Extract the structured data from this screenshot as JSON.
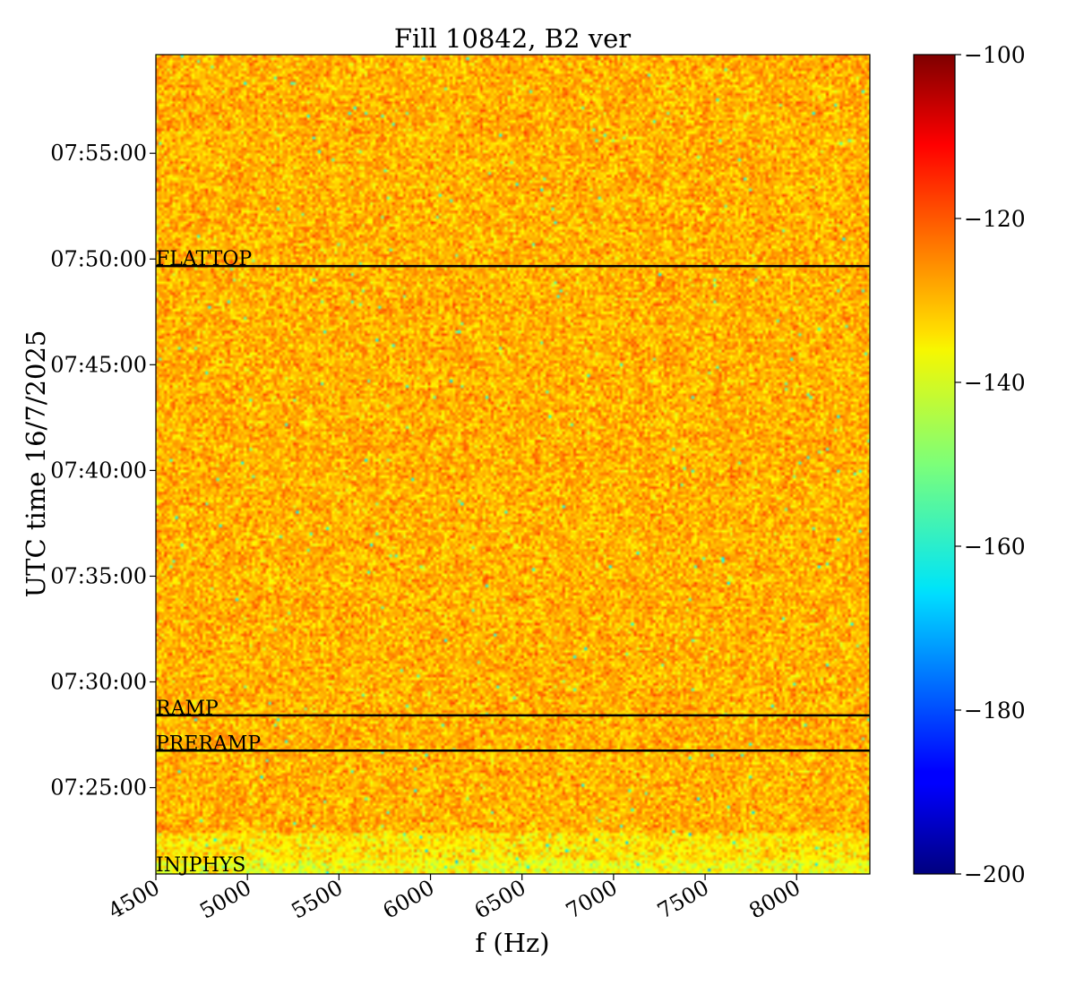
{
  "chart_data": {
    "type": "heatmap",
    "title": "Fill 10842, B2 ver",
    "xlabel": "f (Hz)",
    "ylabel": "UTC time 16/7/2025",
    "xlim": [
      4500,
      8400
    ],
    "ylim": [
      "07:20:55",
      "07:59:40"
    ],
    "x_ticks": [
      "4500",
      "5000",
      "5500",
      "6000",
      "6500",
      "7000",
      "7500",
      "8000"
    ],
    "x_tick_values": [
      4500,
      5000,
      5500,
      6000,
      6500,
      7000,
      7500,
      8000
    ],
    "y_ticks": [
      "07:25:00",
      "07:30:00",
      "07:35:00",
      "07:40:00",
      "07:45:00",
      "07:50:00",
      "07:55:00"
    ],
    "colormap": "jet",
    "colorbar": {
      "min": -200,
      "max": -100,
      "ticks": [
        "−200",
        "−180",
        "−160",
        "−140",
        "−120",
        "−100"
      ],
      "tick_values": [
        -200,
        -180,
        -160,
        -140,
        -120,
        -100
      ]
    },
    "typical_value_range": [
      -140,
      -120
    ],
    "markers": [
      {
        "label": "FLATTOP",
        "time": "07:49:40"
      },
      {
        "label": "RAMP",
        "time": "07:28:25"
      },
      {
        "label": "PRERAMP",
        "time": "07:26:45"
      },
      {
        "label": "INJPHYS",
        "time": "07:21:00"
      }
    ]
  }
}
